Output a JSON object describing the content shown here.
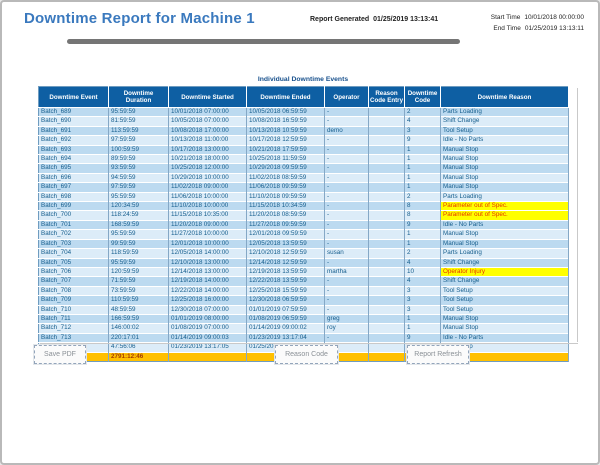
{
  "header": {
    "title": "Downtime Report for Machine 1",
    "report_generated_label": "Report Generated",
    "report_generated_value": "01/25/2019 13:13:41",
    "start_time_label": "Start Time",
    "start_time_value": "10/01/2018 00:00:00",
    "end_time_label": "End Time",
    "end_time_value": "01/25/2019 13:13:11"
  },
  "table": {
    "title": "Individual Downtime Events",
    "columns": [
      "Downtime Event",
      "Downtime\nDuration",
      "Downtime Started",
      "Downtime Ended",
      "Operator",
      "Reason\nCode Entry",
      "Downtime\nCode",
      "Downtime Reason"
    ],
    "rows": [
      {
        "event": "Batch_689",
        "duration": "95:59:59",
        "started": "10/01/2018 07:00:00",
        "ended": "10/05/2018 06:59:59",
        "operator": "-",
        "entry": "",
        "code": "2",
        "reason": "Parts Loading",
        "highlight": false
      },
      {
        "event": "Batch_690",
        "duration": "81:59:59",
        "started": "10/05/2018 07:00:00",
        "ended": "10/08/2018 16:59:59",
        "operator": "-",
        "entry": "",
        "code": "4",
        "reason": "Shift Change",
        "highlight": false
      },
      {
        "event": "Batch_691",
        "duration": "113:59:59",
        "started": "10/08/2018 17:00:00",
        "ended": "10/13/2018 10:59:59",
        "operator": "demo",
        "entry": "",
        "code": "3",
        "reason": "Tool Setup",
        "highlight": false
      },
      {
        "event": "Batch_692",
        "duration": "97:59:59",
        "started": "10/13/2018 11:00:00",
        "ended": "10/17/2018 12:59:59",
        "operator": "-",
        "entry": "",
        "code": "9",
        "reason": "Idle - No Parts",
        "highlight": false
      },
      {
        "event": "Batch_693",
        "duration": "100:59:59",
        "started": "10/17/2018 13:00:00",
        "ended": "10/21/2018 17:59:59",
        "operator": "-",
        "entry": "",
        "code": "1",
        "reason": "Manual Stop",
        "highlight": false
      },
      {
        "event": "Batch_694",
        "duration": "89:59:59",
        "started": "10/21/2018 18:00:00",
        "ended": "10/25/2018 11:59:59",
        "operator": "-",
        "entry": "",
        "code": "1",
        "reason": "Manual Stop",
        "highlight": false
      },
      {
        "event": "Batch_695",
        "duration": "93:59:59",
        "started": "10/25/2018 12:00:00",
        "ended": "10/29/2018 09:59:59",
        "operator": "-",
        "entry": "",
        "code": "1",
        "reason": "Manual Stop",
        "highlight": false
      },
      {
        "event": "Batch_696",
        "duration": "94:59:59",
        "started": "10/29/2018 10:00:00",
        "ended": "11/02/2018 08:59:59",
        "operator": "-",
        "entry": "",
        "code": "1",
        "reason": "Manual Stop",
        "highlight": false
      },
      {
        "event": "Batch_697",
        "duration": "97:59:59",
        "started": "11/02/2018 09:00:00",
        "ended": "11/06/2018 09:59:59",
        "operator": "-",
        "entry": "",
        "code": "1",
        "reason": "Manual Stop",
        "highlight": false
      },
      {
        "event": "Batch_698",
        "duration": "95:59:59",
        "started": "11/06/2018 10:00:00",
        "ended": "11/10/2018 09:59:59",
        "operator": "-",
        "entry": "",
        "code": "2",
        "reason": "Parts Loading",
        "highlight": false
      },
      {
        "event": "Batch_699",
        "duration": "120:34:59",
        "started": "11/10/2018 10:00:00",
        "ended": "11/15/2018 10:34:59",
        "operator": "-",
        "entry": "",
        "code": "8",
        "reason": "Parameter out of Spec.",
        "highlight": true
      },
      {
        "event": "Batch_700",
        "duration": "118:24:59",
        "started": "11/15/2018 10:35:00",
        "ended": "11/20/2018 08:59:59",
        "operator": "-",
        "entry": "",
        "code": "8",
        "reason": "Parameter out of Spec.",
        "highlight": true
      },
      {
        "event": "Batch_701",
        "duration": "168:59:59",
        "started": "11/20/2018 09:00:00",
        "ended": "11/27/2018 09:59:59",
        "operator": "-",
        "entry": "",
        "code": "9",
        "reason": "Idle - No Parts",
        "highlight": false
      },
      {
        "event": "Batch_702",
        "duration": "95:59:59",
        "started": "11/27/2018 10:00:00",
        "ended": "12/01/2018 09:59:59",
        "operator": "-",
        "entry": "",
        "code": "1",
        "reason": "Manual Stop",
        "highlight": false
      },
      {
        "event": "Batch_703",
        "duration": "99:59:59",
        "started": "12/01/2018 10:00:00",
        "ended": "12/05/2018 13:59:59",
        "operator": "-",
        "entry": "",
        "code": "1",
        "reason": "Manual Stop",
        "highlight": false
      },
      {
        "event": "Batch_704",
        "duration": "118:59:59",
        "started": "12/05/2018 14:00:00",
        "ended": "12/10/2018 12:59:59",
        "operator": "susan",
        "entry": "",
        "code": "2",
        "reason": "Parts Loading",
        "highlight": false
      },
      {
        "event": "Batch_705",
        "duration": "95:59:59",
        "started": "12/10/2018 13:00:00",
        "ended": "12/14/2018 12:59:59",
        "operator": "-",
        "entry": "",
        "code": "4",
        "reason": "Shift Change",
        "highlight": false
      },
      {
        "event": "Batch_706",
        "duration": "120:59:59",
        "started": "12/14/2018 13:00:00",
        "ended": "12/19/2018 13:59:59",
        "operator": "martha",
        "entry": "",
        "code": "10",
        "reason": "Operator Injury",
        "highlight": true
      },
      {
        "event": "Batch_707",
        "duration": "71:59:59",
        "started": "12/19/2018 14:00:00",
        "ended": "12/22/2018 13:59:59",
        "operator": "-",
        "entry": "",
        "code": "4",
        "reason": "Shift Change",
        "highlight": false
      },
      {
        "event": "Batch_708",
        "duration": "73:59:59",
        "started": "12/22/2018 14:00:00",
        "ended": "12/25/2018 15:59:59",
        "operator": "-",
        "entry": "",
        "code": "3",
        "reason": "Tool Setup",
        "highlight": false
      },
      {
        "event": "Batch_709",
        "duration": "110:59:59",
        "started": "12/25/2018 16:00:00",
        "ended": "12/30/2018 06:59:59",
        "operator": "-",
        "entry": "",
        "code": "3",
        "reason": "Tool Setup",
        "highlight": false
      },
      {
        "event": "Batch_710",
        "duration": "48:59:59",
        "started": "12/30/2018 07:00:00",
        "ended": "01/01/2019 07:59:59",
        "operator": "-",
        "entry": "",
        "code": "3",
        "reason": "Tool Setup",
        "highlight": false
      },
      {
        "event": "Batch_711",
        "duration": "166:59:59",
        "started": "01/01/2019 08:00:00",
        "ended": "01/08/2019 06:59:59",
        "operator": "greg",
        "entry": "",
        "code": "1",
        "reason": "Manual Stop",
        "highlight": false
      },
      {
        "event": "Batch_712",
        "duration": "146:00:02",
        "started": "01/08/2019 07:00:00",
        "ended": "01/14/2019 09:00:02",
        "operator": "roy",
        "entry": "",
        "code": "1",
        "reason": "Manual Stop",
        "highlight": false
      },
      {
        "event": "Batch_713",
        "duration": "220:17:01",
        "started": "01/14/2019 09:00:03",
        "ended": "01/23/2019 13:17:04",
        "operator": "-",
        "entry": "",
        "code": "9",
        "reason": "Idle - No Parts",
        "highlight": false
      },
      {
        "event": "Batch_714",
        "duration": "47:56:06",
        "started": "01/23/2019 13:17:05",
        "ended": "01/25/2019 13:13:11",
        "operator": "-",
        "entry": "",
        "code": "3",
        "reason": "Tool Setup",
        "highlight": false
      }
    ],
    "total_duration": "2791:12:46"
  },
  "buttons": {
    "save_pdf": "Save PDF",
    "reason_code": "Reason Code",
    "report_refresh": "Report Refresh"
  },
  "colors": {
    "title_blue": "#3a79be",
    "header_band": "#0e5fa3",
    "row_odd": "#bcdaf0",
    "row_even": "#dcecf8",
    "cell_text": "#165e8d",
    "highlight_bg": "#ffff00",
    "highlight_text": "#e63600",
    "total_row_bg": "#ffc000",
    "total_text": "#a33c00"
  }
}
